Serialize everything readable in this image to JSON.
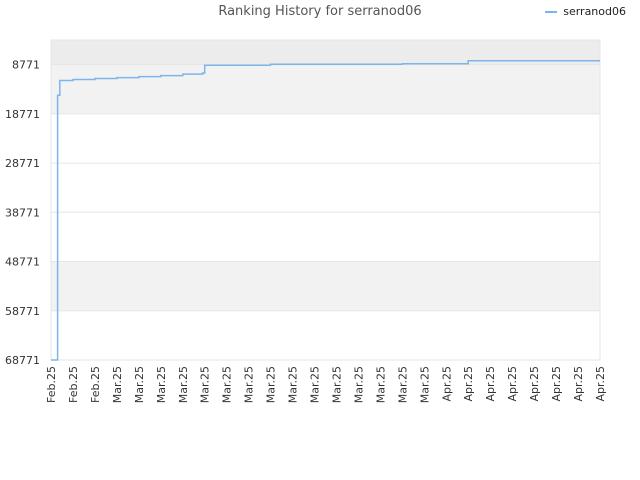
{
  "chart_data": {
    "type": "line",
    "title": "Ranking History for serranod06",
    "y_tick_labels": [
      "8771",
      "18771",
      "28771",
      "38771",
      "48771",
      "58771",
      "68771"
    ],
    "y_ticks": [
      8771,
      18771,
      28771,
      38771,
      48771,
      58771,
      68771
    ],
    "ylim": [
      68771,
      0
    ],
    "y_reversed": true,
    "x_tick_labels": [
      "Feb.25",
      "Feb.25",
      "Feb.25",
      "Mar.25",
      "Mar.25",
      "Mar.25",
      "Mar.25",
      "Mar.25",
      "Mar.25",
      "Mar.25",
      "Mar.25",
      "Mar.25",
      "Mar.25",
      "Mar.25",
      "Mar.25",
      "Mar.25",
      "Mar.25",
      "Mar.25",
      "Apr.25",
      "Apr.25",
      "Apr.25",
      "Apr.25",
      "Apr.25",
      "Apr.25",
      "Apr.25",
      "Apr.25"
    ],
    "grid": true,
    "legend_position": "top-right",
    "series": [
      {
        "name": "serranod06",
        "color": "#7cb5ec",
        "x": [
          0.0,
          0.3,
          0.4,
          1.0,
          2.0,
          3.0,
          4.0,
          5.0,
          6.0,
          6.9,
          7.0,
          10.0,
          16.0,
          19.0,
          25.0
        ],
        "y": [
          68771,
          15000,
          12000,
          11800,
          11600,
          11400,
          11200,
          11000,
          10700,
          10500,
          8900,
          8700,
          8600,
          8000,
          8000
        ]
      }
    ]
  },
  "colors": {
    "band_light": "#f2f2f2",
    "band_top": "#ececec",
    "grid": "#e6e6e6",
    "axis_text": "#333333",
    "line": "#7cb5ec"
  }
}
